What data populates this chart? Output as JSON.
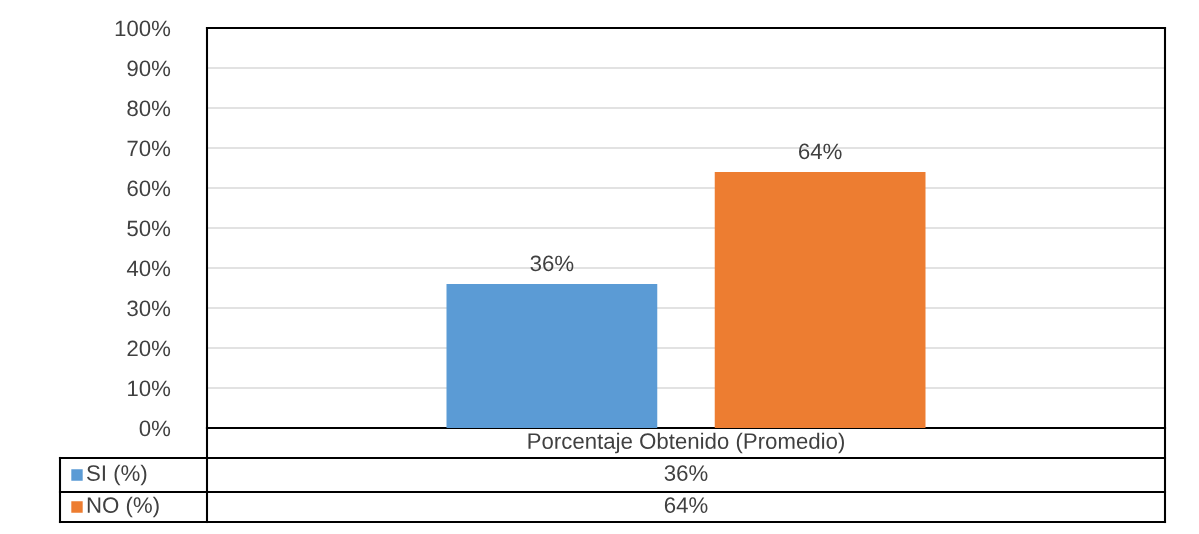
{
  "chart_data": {
    "type": "bar",
    "categories": [
      "Porcentaje Obtenido (Promedio)"
    ],
    "series": [
      {
        "name": "SI (%)",
        "color": "#5b9bd5",
        "values": [
          36
        ],
        "value_labels": [
          "36%"
        ]
      },
      {
        "name": "NO (%)",
        "color": "#ed7d31",
        "values": [
          64
        ],
        "value_labels": [
          "64%"
        ]
      }
    ],
    "ylim": [
      0,
      100
    ],
    "yticks": [
      {
        "value": 0,
        "label": "0%"
      },
      {
        "value": 10,
        "label": "10%"
      },
      {
        "value": 20,
        "label": "20%"
      },
      {
        "value": 30,
        "label": "30%"
      },
      {
        "value": 40,
        "label": "40%"
      },
      {
        "value": 50,
        "label": "50%"
      },
      {
        "value": 60,
        "label": "60%"
      },
      {
        "value": 70,
        "label": "70%"
      },
      {
        "value": 80,
        "label": "80%"
      },
      {
        "value": 90,
        "label": "90%"
      },
      {
        "value": 100,
        "label": "100%"
      }
    ],
    "grid": "y",
    "legend": "bottom"
  }
}
